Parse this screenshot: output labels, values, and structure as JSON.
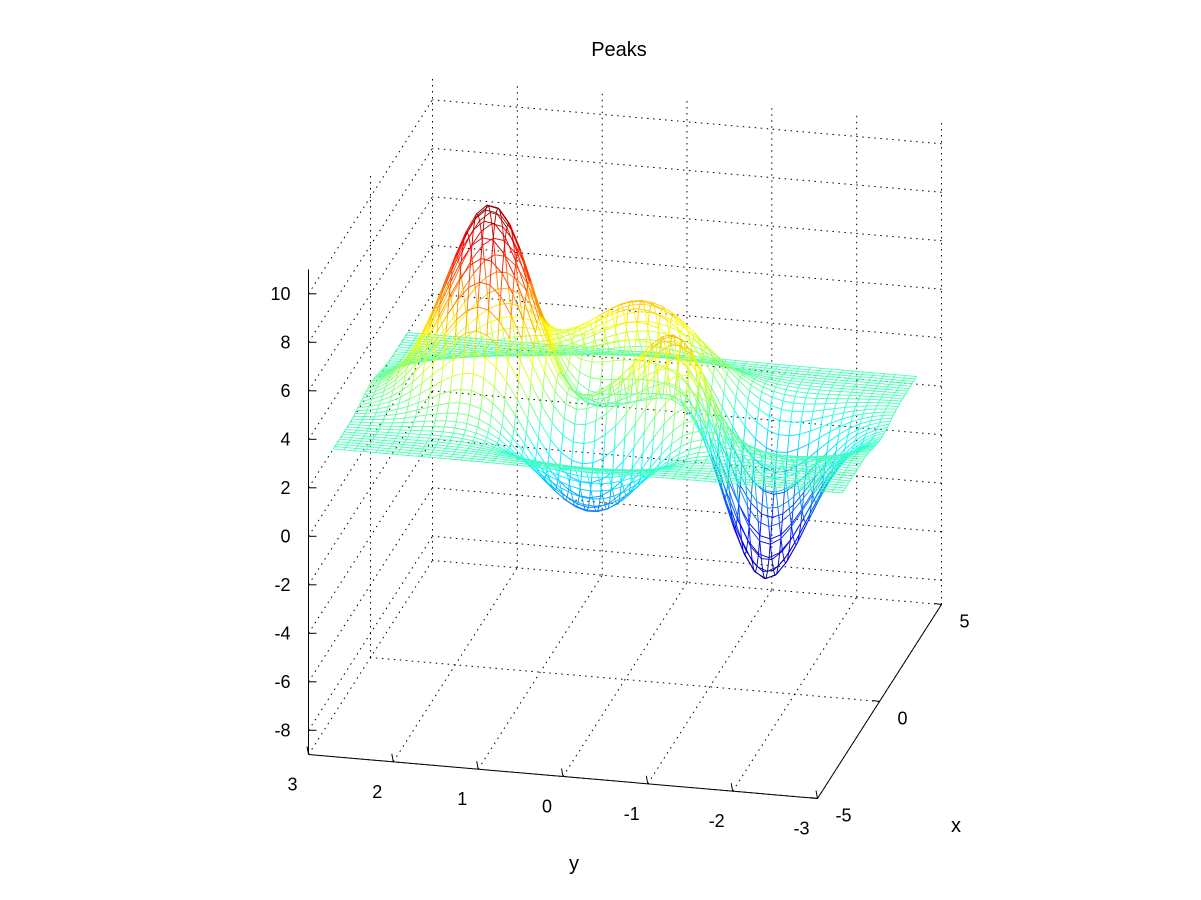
{
  "chart_data": {
    "type": "surface",
    "title": "Peaks",
    "xlabel": "x",
    "ylabel": "y",
    "zlabel": "",
    "function": "peaks",
    "x_ticks": [
      "-5",
      "0",
      "5"
    ],
    "y_ticks": [
      "3",
      "2",
      "1",
      "0",
      "-1",
      "-2",
      "-3"
    ],
    "z_ticks": [
      "-8",
      "-6",
      "-4",
      "-2",
      "0",
      "2",
      "4",
      "6",
      "8",
      "10"
    ],
    "xlim": [
      -5,
      5
    ],
    "ylim": [
      -3,
      3
    ],
    "zlim": [
      -9,
      11
    ],
    "grid": true,
    "colormap": "jet",
    "style": "mesh",
    "surface_offset": 2,
    "x_domain": [
      -3,
      3
    ],
    "y_domain": [
      -3,
      3
    ],
    "z_range_min": -6.55,
    "z_range_max": 8.1
  }
}
